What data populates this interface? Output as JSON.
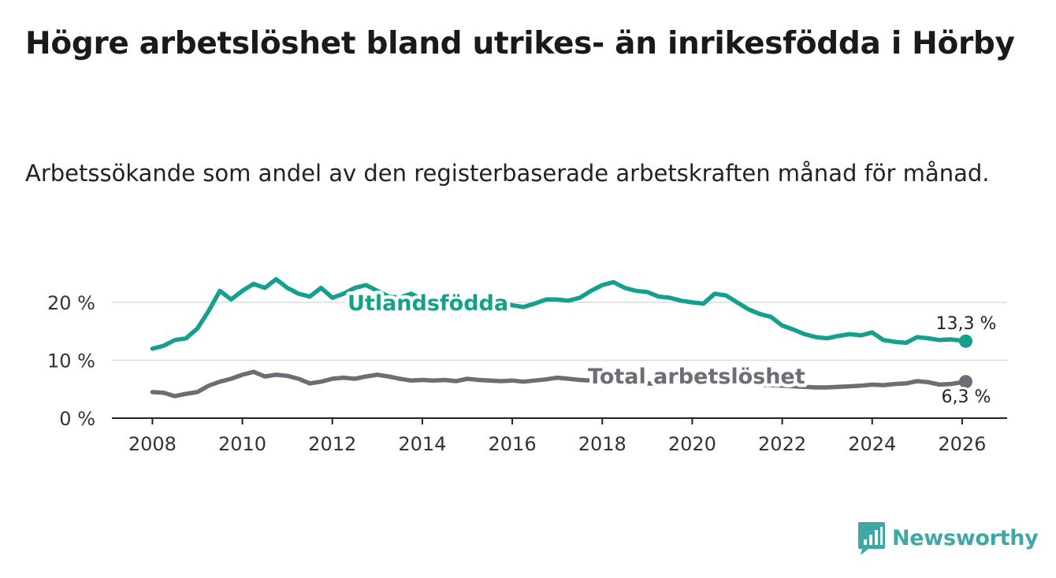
{
  "title": "Högre arbetslöshet bland utrikes- än inrikesfödda i Hörby",
  "subtitle": "Arbetssökande som andel av den registerbaserade arbetskraften månad för månad.",
  "brand": {
    "name": "Newsworthy",
    "color": "#3fa8a6",
    "icon": "bar-chart-speech-icon"
  },
  "chart_data": {
    "type": "line",
    "title": "Högre arbetslöshet bland utrikes- än inrikesfödda i Hörby",
    "xlabel": "",
    "ylabel": "",
    "xlim": [
      2007.1,
      2027.0
    ],
    "ylim": [
      0,
      20
    ],
    "x_ticks": [
      2008,
      2010,
      2012,
      2014,
      2016,
      2018,
      2020,
      2022,
      2024,
      2026
    ],
    "x_tick_labels": [
      "2008",
      "2010",
      "2012",
      "2014",
      "2016",
      "2018",
      "2020",
      "2022",
      "2024",
      "2026"
    ],
    "y_ticks": [
      0,
      10,
      20
    ],
    "y_tick_labels": [
      "0 %",
      "10 %",
      "20 %"
    ],
    "grid": true,
    "series": [
      {
        "name": "Utlandsfödda",
        "color": "#15a08e",
        "end_label": "13,3 %",
        "x": [
          2008.0,
          2008.25,
          2008.5,
          2008.75,
          2009.0,
          2009.25,
          2009.5,
          2009.75,
          2010.0,
          2010.25,
          2010.5,
          2010.75,
          2011.0,
          2011.25,
          2011.5,
          2011.75,
          2012.0,
          2012.25,
          2012.5,
          2012.75,
          2013.0,
          2013.25,
          2013.5,
          2013.75,
          2014.0,
          2014.25,
          2014.5,
          2014.75,
          2015.0,
          2015.25,
          2015.5,
          2015.75,
          2016.0,
          2016.25,
          2016.5,
          2016.75,
          2017.0,
          2017.25,
          2017.5,
          2017.75,
          2018.0,
          2018.25,
          2018.5,
          2018.75,
          2019.0,
          2019.25,
          2019.5,
          2019.75,
          2020.0,
          2020.25,
          2020.5,
          2020.75,
          2021.0,
          2021.25,
          2021.5,
          2021.75,
          2022.0,
          2022.25,
          2022.5,
          2022.75,
          2023.0,
          2023.25,
          2023.5,
          2023.75,
          2024.0,
          2024.25,
          2024.5,
          2024.75,
          2025.0,
          2025.25,
          2025.5,
          2025.75,
          2026.08
        ],
        "y": [
          12.0,
          12.5,
          13.5,
          13.8,
          15.5,
          18.5,
          22.0,
          20.5,
          22.0,
          23.2,
          22.5,
          24.0,
          22.5,
          21.5,
          21.0,
          22.5,
          20.8,
          21.5,
          22.5,
          23.0,
          22.0,
          21.0,
          20.8,
          21.5,
          20.5,
          20.0,
          20.5,
          19.8,
          19.5,
          19.8,
          19.5,
          20.0,
          19.5,
          19.2,
          19.8,
          20.5,
          20.5,
          20.3,
          20.8,
          22.0,
          23.0,
          23.5,
          22.5,
          22.0,
          21.8,
          21.0,
          20.8,
          20.3,
          20.0,
          19.8,
          21.5,
          21.2,
          20.0,
          18.8,
          18.0,
          17.5,
          16.0,
          15.3,
          14.5,
          14.0,
          13.8,
          14.2,
          14.5,
          14.3,
          14.8,
          13.5,
          13.2,
          13.0,
          14.0,
          13.8,
          13.5,
          13.6,
          13.3
        ]
      },
      {
        "name": "Total arbetslöshet",
        "color": "#6e6d76",
        "end_label": "6,3 %",
        "x": [
          2008.0,
          2008.25,
          2008.5,
          2008.75,
          2009.0,
          2009.25,
          2009.5,
          2009.75,
          2010.0,
          2010.25,
          2010.5,
          2010.75,
          2011.0,
          2011.25,
          2011.5,
          2011.75,
          2012.0,
          2012.25,
          2012.5,
          2012.75,
          2013.0,
          2013.25,
          2013.5,
          2013.75,
          2014.0,
          2014.25,
          2014.5,
          2014.75,
          2015.0,
          2015.25,
          2015.5,
          2015.75,
          2016.0,
          2016.25,
          2016.5,
          2016.75,
          2017.0,
          2017.25,
          2017.5,
          2017.75,
          2018.0,
          2018.25,
          2018.5,
          2018.75,
          2019.0,
          2019.25,
          2019.5,
          2019.75,
          2020.0,
          2020.25,
          2020.5,
          2020.75,
          2021.0,
          2021.25,
          2021.5,
          2021.75,
          2022.0,
          2022.25,
          2022.5,
          2022.75,
          2023.0,
          2023.25,
          2023.5,
          2023.75,
          2024.0,
          2024.25,
          2024.5,
          2024.75,
          2025.0,
          2025.25,
          2025.5,
          2025.75,
          2026.08
        ],
        "y": [
          4.5,
          4.4,
          3.8,
          4.2,
          4.5,
          5.6,
          6.3,
          6.8,
          7.5,
          8.0,
          7.2,
          7.5,
          7.3,
          6.8,
          6.0,
          6.3,
          6.8,
          7.0,
          6.8,
          7.2,
          7.5,
          7.2,
          6.8,
          6.5,
          6.6,
          6.5,
          6.6,
          6.4,
          6.8,
          6.6,
          6.5,
          6.4,
          6.5,
          6.3,
          6.5,
          6.7,
          7.0,
          6.8,
          6.6,
          6.5,
          6.7,
          6.5,
          6.4,
          6.2,
          6.0,
          5.9,
          6.2,
          6.4,
          6.5,
          6.6,
          6.8,
          6.5,
          6.3,
          6.0,
          5.8,
          5.7,
          5.6,
          5.5,
          5.4,
          5.3,
          5.3,
          5.4,
          5.5,
          5.6,
          5.8,
          5.7,
          5.9,
          6.0,
          6.4,
          6.2,
          5.8,
          5.9,
          6.3
        ]
      }
    ]
  }
}
